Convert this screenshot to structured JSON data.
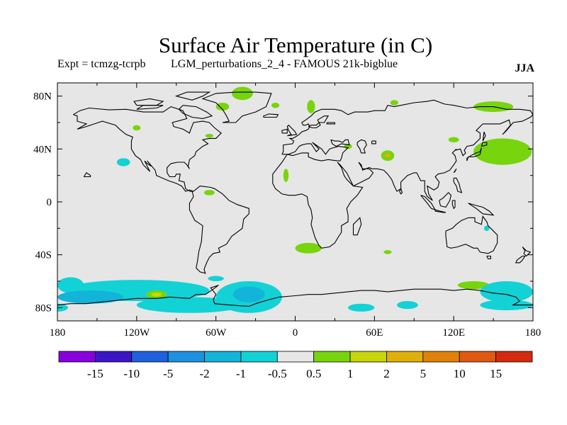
{
  "title": "Surface Air Temperature (in C)",
  "experiment": "Expt = tcmzg-tcrpb",
  "run_label": "LGM_perturbations_2_4 - FAMOUS 21k-bigblue",
  "season": "JJA",
  "lat_ticks": [
    "80N",
    "40N",
    "0",
    "40S",
    "80S"
  ],
  "lon_ticks": [
    "180",
    "120W",
    "60W",
    "0",
    "60E",
    "120E",
    "180"
  ],
  "colorbar": {
    "colors": [
      "#8800dd",
      "#3a16c8",
      "#1f60dd",
      "#1e90e0",
      "#13b4da",
      "#12d2d6",
      "#e6e6e6",
      "#78d40c",
      "#c8d60a",
      "#e0b00a",
      "#e08208",
      "#e05812",
      "#d42a0e"
    ],
    "labels": [
      "-15",
      "-10",
      "-5",
      "-2",
      "-1",
      "-0.5",
      "0.5",
      "1",
      "2",
      "5",
      "10",
      "15"
    ]
  },
  "chart_data": {
    "type": "heatmap",
    "title": "Surface Air Temperature (in C)",
    "projection": "cylindrical equidistant",
    "xrange_deg": [
      -180,
      180
    ],
    "yrange_deg": [
      -90,
      90
    ],
    "background_color": "#e6e6e6",
    "coastlines": true,
    "regions": [
      {
        "shape": "ellipse",
        "lon": -170,
        "lat": -63,
        "rlon": 10,
        "rlat": 6,
        "color": "#12d2d6"
      },
      {
        "shape": "ellipse",
        "lon": -120,
        "lat": -67,
        "rlon": 55,
        "rlat": 8,
        "color": "#12d2d6"
      },
      {
        "shape": "ellipse",
        "lon": -155,
        "lat": -72,
        "rlon": 25,
        "rlat": 5,
        "color": "#13b4da"
      },
      {
        "shape": "ellipse",
        "lon": -105,
        "lat": -70,
        "rlon": 8,
        "rlat": 3,
        "color": "#78d40c"
      },
      {
        "shape": "ellipse",
        "lon": -105,
        "lat": -70,
        "rlon": 4,
        "rlat": 1.5,
        "color": "#c8d60a"
      },
      {
        "shape": "ellipse",
        "lon": -80,
        "lat": -78,
        "rlon": 40,
        "rlat": 6,
        "color": "#12d2d6"
      },
      {
        "shape": "ellipse",
        "lon": -35,
        "lat": -72,
        "rlon": 25,
        "rlat": 12,
        "color": "#12d2d6"
      },
      {
        "shape": "ellipse",
        "lon": -35,
        "lat": -70,
        "rlon": 12,
        "rlat": 6,
        "color": "#13b4da"
      },
      {
        "shape": "ellipse",
        "lon": -60,
        "lat": -58,
        "rlon": 6,
        "rlat": 2,
        "color": "#12d2d6"
      },
      {
        "shape": "ellipse",
        "lon": 50,
        "lat": -80,
        "rlon": 10,
        "rlat": 3,
        "color": "#12d2d6"
      },
      {
        "shape": "ellipse",
        "lon": 85,
        "lat": -78,
        "rlon": 8,
        "rlat": 3,
        "color": "#12d2d6"
      },
      {
        "shape": "ellipse",
        "lon": 135,
        "lat": -63,
        "rlon": 12,
        "rlat": 3,
        "color": "#78d40c"
      },
      {
        "shape": "ellipse",
        "lon": 160,
        "lat": -68,
        "rlon": 20,
        "rlat": 8,
        "color": "#12d2d6"
      },
      {
        "shape": "ellipse",
        "lon": 160,
        "lat": -78,
        "rlon": 20,
        "rlat": 4,
        "color": "#12d2d6"
      },
      {
        "shape": "ellipse",
        "lon": 10,
        "lat": -35,
        "rlon": 10,
        "rlat": 4,
        "color": "#78d40c"
      },
      {
        "shape": "ellipse",
        "lon": 70,
        "lat": -38,
        "rlon": 3,
        "rlat": 1.5,
        "color": "#78d40c"
      },
      {
        "shape": "ellipse",
        "lon": -65,
        "lat": 7,
        "rlon": 4,
        "rlat": 2,
        "color": "#78d40c"
      },
      {
        "shape": "ellipse",
        "lon": -130,
        "lat": 30,
        "rlon": 5,
        "rlat": 3,
        "color": "#12d2d6"
      },
      {
        "shape": "ellipse",
        "lon": -120,
        "lat": 56,
        "rlon": 3,
        "rlat": 2,
        "color": "#78d40c"
      },
      {
        "shape": "ellipse",
        "lon": -40,
        "lat": 82,
        "rlon": 8,
        "rlat": 5,
        "color": "#78d40c"
      },
      {
        "shape": "ellipse",
        "lon": -55,
        "lat": 72,
        "rlon": 5,
        "rlat": 3,
        "color": "#78d40c"
      },
      {
        "shape": "ellipse",
        "lon": -15,
        "lat": 73,
        "rlon": 3,
        "rlat": 2,
        "color": "#78d40c"
      },
      {
        "shape": "ellipse",
        "lon": -65,
        "lat": 50,
        "rlon": 3,
        "rlat": 1.5,
        "color": "#78d40c"
      },
      {
        "shape": "ellipse",
        "lon": -7,
        "lat": 20,
        "rlon": 2,
        "rlat": 5,
        "color": "#78d40c"
      },
      {
        "shape": "ellipse",
        "lon": 12,
        "lat": 72,
        "rlon": 3,
        "rlat": 5,
        "color": "#78d40c"
      },
      {
        "shape": "ellipse",
        "lon": 40,
        "lat": 42,
        "rlon": 3,
        "rlat": 2,
        "color": "#78d40c"
      },
      {
        "shape": "ellipse",
        "lon": 70,
        "lat": 35,
        "rlon": 5,
        "rlat": 4,
        "color": "#78d40c"
      },
      {
        "shape": "ellipse",
        "lon": 70,
        "lat": 35,
        "rlon": 2,
        "rlat": 1.5,
        "color": "#e0b00a"
      },
      {
        "shape": "ellipse",
        "lon": 75,
        "lat": 75,
        "rlon": 3,
        "rlat": 2,
        "color": "#78d40c"
      },
      {
        "shape": "ellipse",
        "lon": 150,
        "lat": 72,
        "rlon": 15,
        "rlat": 4,
        "color": "#78d40c"
      },
      {
        "shape": "ellipse",
        "lon": 157,
        "lat": 38,
        "rlon": 22,
        "rlat": 10,
        "color": "#78d40c"
      },
      {
        "shape": "ellipse",
        "lon": 120,
        "lat": 47,
        "rlon": 4,
        "rlat": 2,
        "color": "#78d40c"
      },
      {
        "shape": "ellipse",
        "lon": 145,
        "lat": -20,
        "rlon": 2,
        "rlat": 2,
        "color": "#12d2d6"
      },
      {
        "shape": "ellipse",
        "lon": -180,
        "lat": -80,
        "rlon": 8,
        "rlat": 3,
        "color": "#12d2d6"
      }
    ]
  }
}
